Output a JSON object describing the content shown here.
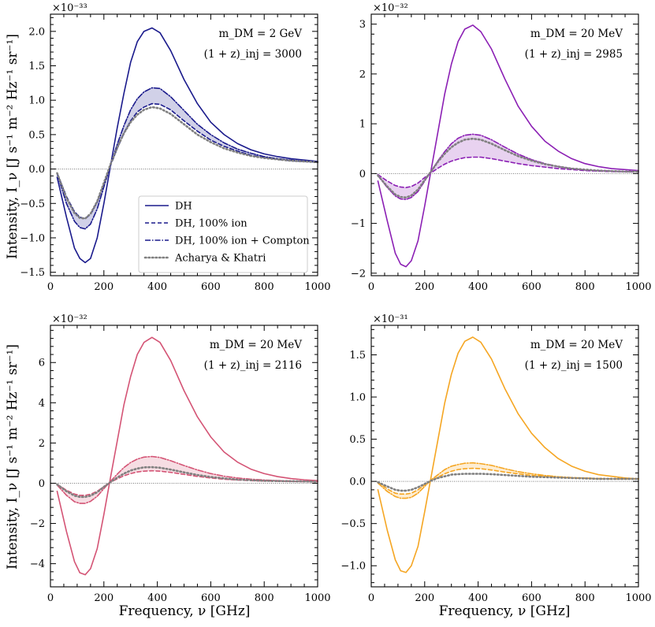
{
  "figure": {
    "xlabel": "Frequency, ν [GHz]",
    "ylabel": "Intensity, I_ν [J s⁻¹ m⁻² Hz⁻¹ sr⁻¹]"
  },
  "legend": {
    "placement": "lower-right of top-left panel",
    "entries": [
      "DH",
      "DH, 100% ion",
      "DH, 100% ion + Compton",
      "Acharya & Khatri"
    ]
  },
  "chart_data": [
    {
      "type": "line",
      "panel": "top-left",
      "exponent_label": "×10⁻³³",
      "annotation_mass": "m_DM = 2 GeV",
      "annotation_z": "(1 + z)_inj = 3000",
      "color": "#1a1a8c",
      "xlim": [
        0,
        1000
      ],
      "ylim": [
        -1.55,
        2.25
      ],
      "xticks": [
        0,
        200,
        400,
        600,
        800,
        1000
      ],
      "yticks": [
        -1.5,
        -1.0,
        -0.5,
        0.0,
        0.5,
        1.0,
        1.5,
        2.0
      ],
      "ytick_labels": [
        "−1.5",
        "−1.0",
        "−0.5",
        "0.0",
        "0.5",
        "1.0",
        "1.5",
        "2.0"
      ],
      "x": [
        25,
        60,
        90,
        110,
        130,
        150,
        175,
        200,
        225,
        250,
        275,
        300,
        325,
        350,
        380,
        410,
        450,
        500,
        550,
        600,
        650,
        700,
        750,
        800,
        850,
        900,
        950,
        1000
      ],
      "series": [
        {
          "name": "DH",
          "style": "solid",
          "values": [
            -0.12,
            -0.7,
            -1.15,
            -1.3,
            -1.36,
            -1.3,
            -1.0,
            -0.5,
            0.05,
            0.6,
            1.1,
            1.55,
            1.85,
            2.0,
            2.05,
            1.98,
            1.72,
            1.3,
            0.95,
            0.68,
            0.5,
            0.37,
            0.28,
            0.22,
            0.18,
            0.15,
            0.13,
            0.11
          ]
        },
        {
          "name": "DH, 100% ion",
          "style": "dashed",
          "values": [
            -0.06,
            -0.4,
            -0.62,
            -0.7,
            -0.72,
            -0.66,
            -0.48,
            -0.22,
            0.05,
            0.3,
            0.52,
            0.7,
            0.83,
            0.9,
            0.95,
            0.94,
            0.86,
            0.7,
            0.55,
            0.42,
            0.33,
            0.26,
            0.2,
            0.17,
            0.14,
            0.12,
            0.11,
            0.1
          ]
        },
        {
          "name": "DH, 100% ion + Compton",
          "style": "dashdot",
          "values": [
            -0.07,
            -0.5,
            -0.76,
            -0.85,
            -0.87,
            -0.8,
            -0.58,
            -0.26,
            0.06,
            0.36,
            0.63,
            0.86,
            1.02,
            1.12,
            1.18,
            1.17,
            1.05,
            0.85,
            0.65,
            0.5,
            0.38,
            0.29,
            0.23,
            0.18,
            0.15,
            0.13,
            0.11,
            0.1
          ]
        },
        {
          "name": "Acharya & Khatri",
          "style": "dotted",
          "values": [
            -0.06,
            -0.42,
            -0.64,
            -0.71,
            -0.72,
            -0.65,
            -0.47,
            -0.2,
            0.07,
            0.31,
            0.52,
            0.68,
            0.79,
            0.86,
            0.9,
            0.88,
            0.8,
            0.65,
            0.5,
            0.39,
            0.3,
            0.24,
            0.19,
            0.16,
            0.14,
            0.12,
            0.11,
            0.1
          ]
        }
      ]
    },
    {
      "type": "line",
      "panel": "top-right",
      "exponent_label": "×10⁻³²",
      "annotation_mass": "m_DM = 20 MeV",
      "annotation_z": "(1 + z)_inj = 2985",
      "color": "#8b1fb4",
      "xlim": [
        0,
        1000
      ],
      "ylim": [
        -2.05,
        3.2
      ],
      "xticks": [
        0,
        200,
        400,
        600,
        800,
        1000
      ],
      "yticks": [
        -2,
        -1,
        0,
        1,
        2,
        3
      ],
      "ytick_labels": [
        "−2",
        "−1",
        "0",
        "1",
        "2",
        "3"
      ],
      "x": [
        25,
        60,
        90,
        110,
        130,
        150,
        175,
        200,
        225,
        250,
        275,
        300,
        325,
        350,
        380,
        410,
        450,
        500,
        550,
        600,
        650,
        700,
        750,
        800,
        850,
        900,
        950,
        1000
      ],
      "series": [
        {
          "name": "DH",
          "style": "solid",
          "values": [
            -0.15,
            -0.95,
            -1.6,
            -1.82,
            -1.87,
            -1.75,
            -1.35,
            -0.65,
            0.1,
            0.85,
            1.6,
            2.2,
            2.65,
            2.9,
            2.98,
            2.85,
            2.5,
            1.9,
            1.35,
            0.95,
            0.65,
            0.45,
            0.3,
            0.2,
            0.14,
            0.1,
            0.08,
            0.06
          ]
        },
        {
          "name": "DH, 100% ion",
          "style": "dashed",
          "values": [
            -0.02,
            -0.15,
            -0.24,
            -0.27,
            -0.28,
            -0.26,
            -0.19,
            -0.08,
            0.02,
            0.11,
            0.19,
            0.25,
            0.29,
            0.32,
            0.33,
            0.33,
            0.3,
            0.25,
            0.2,
            0.16,
            0.13,
            0.1,
            0.08,
            0.06,
            0.05,
            0.04,
            0.04,
            0.03
          ]
        },
        {
          "name": "DH, 100% ion + Compton",
          "style": "dashdot",
          "values": [
            -0.04,
            -0.28,
            -0.45,
            -0.51,
            -0.52,
            -0.48,
            -0.36,
            -0.15,
            0.05,
            0.26,
            0.44,
            0.6,
            0.71,
            0.77,
            0.79,
            0.77,
            0.68,
            0.53,
            0.39,
            0.28,
            0.2,
            0.14,
            0.1,
            0.07,
            0.06,
            0.05,
            0.04,
            0.04
          ]
        },
        {
          "name": "Acharya & Khatri",
          "style": "dotted",
          "values": [
            -0.04,
            -0.26,
            -0.42,
            -0.47,
            -0.48,
            -0.44,
            -0.32,
            -0.13,
            0.05,
            0.24,
            0.4,
            0.53,
            0.62,
            0.68,
            0.7,
            0.68,
            0.6,
            0.47,
            0.35,
            0.26,
            0.19,
            0.14,
            0.1,
            0.08,
            0.06,
            0.05,
            0.04,
            0.04
          ]
        }
      ]
    },
    {
      "type": "line",
      "panel": "bottom-left",
      "exponent_label": "×10⁻³²",
      "annotation_mass": "m_DM = 20 MeV",
      "annotation_z": "(1 + z)_inj = 2116",
      "color": "#d45475",
      "xlim": [
        0,
        1000
      ],
      "ylim": [
        -5.15,
        7.85
      ],
      "xticks": [
        0,
        200,
        400,
        600,
        800,
        1000
      ],
      "yticks": [
        -4,
        -2,
        0,
        2,
        4,
        6
      ],
      "ytick_labels": [
        "−4",
        "−2",
        "0",
        "2",
        "4",
        "6"
      ],
      "x": [
        25,
        60,
        90,
        110,
        130,
        150,
        175,
        200,
        225,
        250,
        275,
        300,
        325,
        350,
        380,
        410,
        450,
        500,
        550,
        600,
        650,
        700,
        750,
        800,
        850,
        900,
        950,
        1000
      ],
      "series": [
        {
          "name": "DH",
          "style": "solid",
          "values": [
            -0.4,
            -2.4,
            -3.9,
            -4.45,
            -4.55,
            -4.25,
            -3.25,
            -1.55,
            0.3,
            2.1,
            3.9,
            5.3,
            6.4,
            7.0,
            7.25,
            7.0,
            6.1,
            4.6,
            3.3,
            2.3,
            1.55,
            1.05,
            0.7,
            0.48,
            0.33,
            0.23,
            0.17,
            0.13
          ]
        },
        {
          "name": "DH, 100% ion",
          "style": "dashed",
          "values": [
            -0.05,
            -0.35,
            -0.54,
            -0.6,
            -0.6,
            -0.55,
            -0.4,
            -0.17,
            0.05,
            0.22,
            0.37,
            0.48,
            0.56,
            0.6,
            0.62,
            0.6,
            0.54,
            0.44,
            0.34,
            0.26,
            0.2,
            0.16,
            0.13,
            0.11,
            0.1,
            0.09,
            0.08,
            0.08
          ]
        },
        {
          "name": "DH, 100% ion + Compton",
          "style": "dashdot",
          "values": [
            -0.09,
            -0.6,
            -0.92,
            -1.0,
            -1.0,
            -0.9,
            -0.65,
            -0.27,
            0.1,
            0.45,
            0.78,
            1.03,
            1.2,
            1.3,
            1.33,
            1.28,
            1.12,
            0.88,
            0.66,
            0.48,
            0.35,
            0.26,
            0.2,
            0.16,
            0.13,
            0.11,
            0.1,
            0.09
          ]
        },
        {
          "name": "Acharya & Khatri",
          "style": "dotted",
          "values": [
            -0.06,
            -0.4,
            -0.62,
            -0.68,
            -0.68,
            -0.62,
            -0.45,
            -0.18,
            0.06,
            0.28,
            0.48,
            0.63,
            0.73,
            0.79,
            0.8,
            0.77,
            0.68,
            0.54,
            0.41,
            0.31,
            0.24,
            0.18,
            0.15,
            0.12,
            0.11,
            0.1,
            0.09,
            0.08
          ]
        }
      ]
    },
    {
      "type": "line",
      "panel": "bottom-right",
      "exponent_label": "×10⁻³¹",
      "annotation_mass": "m_DM = 20 MeV",
      "annotation_z": "(1 + z)_inj = 1500",
      "color": "#f5a623",
      "xlim": [
        0,
        1000
      ],
      "ylim": [
        -1.25,
        1.85
      ],
      "xticks": [
        0,
        200,
        400,
        600,
        800,
        1000
      ],
      "yticks": [
        -1.0,
        -0.5,
        0.0,
        0.5,
        1.0,
        1.5
      ],
      "ytick_labels": [
        "−1.0",
        "−0.5",
        "0.0",
        "0.5",
        "1.0",
        "1.5"
      ],
      "x": [
        25,
        60,
        90,
        110,
        130,
        150,
        175,
        200,
        225,
        250,
        275,
        300,
        325,
        350,
        380,
        410,
        450,
        500,
        550,
        600,
        650,
        700,
        750,
        800,
        850,
        900,
        950,
        1000
      ],
      "series": [
        {
          "name": "DH",
          "style": "solid",
          "values": [
            -0.1,
            -0.58,
            -0.93,
            -1.06,
            -1.08,
            -1.0,
            -0.77,
            -0.36,
            0.07,
            0.5,
            0.93,
            1.27,
            1.52,
            1.66,
            1.71,
            1.65,
            1.45,
            1.1,
            0.8,
            0.57,
            0.4,
            0.27,
            0.18,
            0.12,
            0.08,
            0.06,
            0.04,
            0.03
          ]
        },
        {
          "name": "DH, 100% ion",
          "style": "dashed",
          "values": [
            -0.01,
            -0.09,
            -0.14,
            -0.15,
            -0.15,
            -0.14,
            -0.1,
            -0.04,
            0.01,
            0.05,
            0.09,
            0.12,
            0.14,
            0.15,
            0.155,
            0.15,
            0.135,
            0.11,
            0.09,
            0.07,
            0.06,
            0.05,
            0.04,
            0.035,
            0.03,
            0.03,
            0.03,
            0.03
          ]
        },
        {
          "name": "DH, 100% ion + Compton",
          "style": "dashdot",
          "values": [
            -0.02,
            -0.12,
            -0.18,
            -0.2,
            -0.2,
            -0.19,
            -0.14,
            -0.06,
            0.02,
            0.08,
            0.14,
            0.18,
            0.2,
            0.215,
            0.22,
            0.21,
            0.19,
            0.15,
            0.115,
            0.09,
            0.07,
            0.055,
            0.045,
            0.04,
            0.035,
            0.03,
            0.03,
            0.03
          ]
        },
        {
          "name": "Acharya & Khatri",
          "style": "dotted",
          "values": [
            -0.01,
            -0.06,
            -0.1,
            -0.11,
            -0.11,
            -0.1,
            -0.07,
            -0.03,
            0.01,
            0.04,
            0.06,
            0.08,
            0.085,
            0.09,
            0.09,
            0.09,
            0.085,
            0.075,
            0.065,
            0.055,
            0.05,
            0.045,
            0.04,
            0.035,
            0.03,
            0.03,
            0.03,
            0.03
          ]
        }
      ]
    }
  ]
}
